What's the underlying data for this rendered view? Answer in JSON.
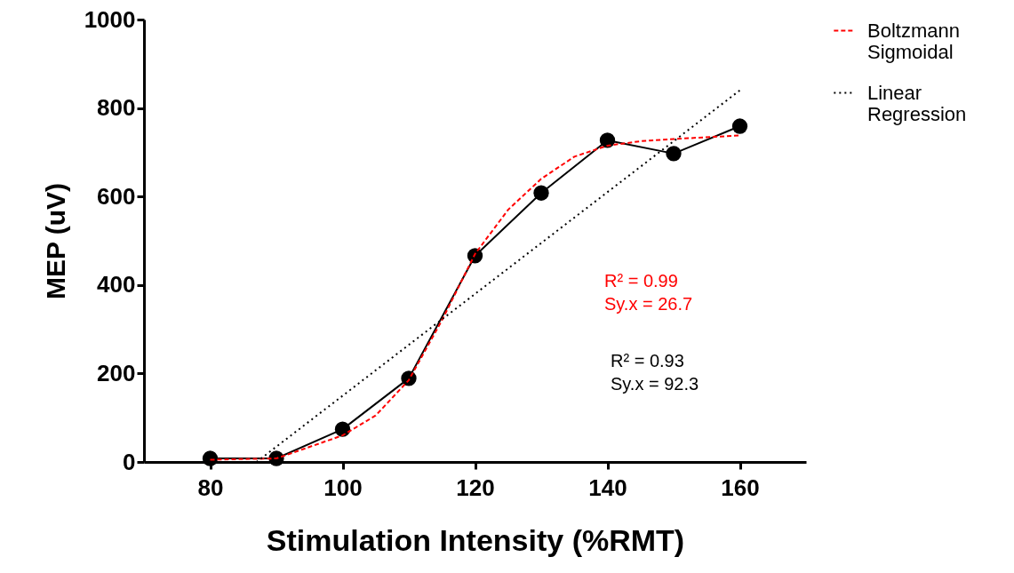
{
  "chart_data": {
    "type": "line",
    "xlabel": "Stimulation Intensity (%RMT)",
    "ylabel": "MEP (uV)",
    "xlim": [
      70,
      170
    ],
    "ylim": [
      0,
      1000
    ],
    "xticks": [
      80,
      100,
      120,
      140,
      160
    ],
    "yticks": [
      0,
      200,
      400,
      600,
      800,
      1000
    ],
    "legend": "right",
    "annotations": [
      "R² = 0.99\nSy.x = 26.7",
      "R² = 0.93\nSy.x = 92.3"
    ],
    "x": [
      80,
      90,
      100,
      110,
      120,
      130,
      140,
      150,
      160
    ],
    "series": [
      {
        "color": "#000000",
        "marker": "circle",
        "line_style": "solid",
        "values": [
          8,
          8,
          74,
          189,
          466,
          608,
          727,
          697,
          759
        ]
      },
      {
        "name": "Boltzmann Sigmoidal",
        "color": "#ff0000",
        "marker": "none",
        "line_style": "dashed",
        "x": [
          80,
          90,
          100,
          105,
          110,
          115,
          120,
          125,
          130,
          135,
          140,
          145,
          150,
          160
        ],
        "values": [
          5,
          8,
          60,
          105,
          185,
          320,
          470,
          570,
          640,
          690,
          715,
          725,
          730,
          738
        ]
      },
      {
        "name": "Linear Regression",
        "color": "#000000",
        "marker": "none",
        "line_style": "dotted",
        "x": [
          87,
          160
        ],
        "values": [
          0,
          840
        ]
      }
    ]
  }
}
